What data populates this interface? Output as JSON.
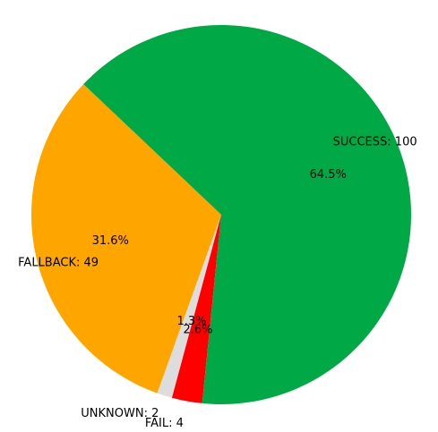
{
  "chart_data": {
    "type": "pie",
    "title": "",
    "start_angle_deg": 136.5,
    "direction": "counterclockwise",
    "slices": [
      {
        "label": "FALLBACK: 49",
        "value": 49,
        "percent_label": "31.6%",
        "color": "#FFA500"
      },
      {
        "label": "UNKNOWN: 2",
        "value": 2,
        "percent_label": "1.3%",
        "color": "#DDDDDD"
      },
      {
        "label": "FAIL: 4",
        "value": 4,
        "percent_label": "2.6%",
        "color": "#FF0000"
      },
      {
        "label": "SUCCESS: 100",
        "value": 100,
        "percent_label": "64.5%",
        "color": "#00A846"
      }
    ]
  }
}
